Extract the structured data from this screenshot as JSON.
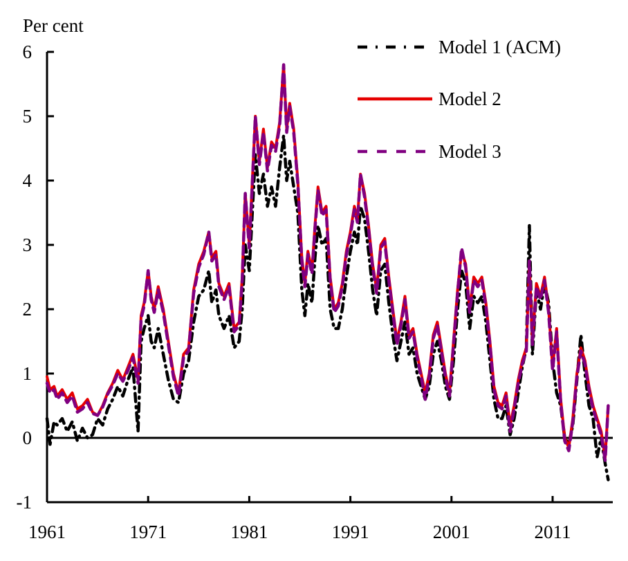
{
  "chart_data": {
    "type": "line",
    "title": "",
    "xlabel": "",
    "ylabel": "Per cent",
    "xlim": [
      1961,
      2016.7
    ],
    "ylim": [
      -1,
      6
    ],
    "x_ticks": [
      1961,
      1971,
      1981,
      1991,
      2001,
      2011
    ],
    "x_tick_labels": [
      "1961",
      "1971",
      "1981",
      "1991",
      "2001",
      "2011"
    ],
    "y_ticks": [
      -1,
      0,
      1,
      2,
      3,
      4,
      5,
      6
    ],
    "y_tick_labels": [
      "-1",
      "0",
      "1",
      "2",
      "3",
      "4",
      "5",
      "6"
    ],
    "grid": false,
    "zero_line": true,
    "legend_position": "top-right",
    "series": [
      {
        "name": "Model 1 (ACM)",
        "color": "#000000",
        "style": "dash-dot",
        "x": [
          1961.0,
          1961.3,
          1961.7,
          1962.0,
          1962.5,
          1963.0,
          1963.5,
          1964.0,
          1964.5,
          1965.0,
          1965.5,
          1966.0,
          1966.5,
          1967.0,
          1967.5,
          1968.0,
          1968.5,
          1969.0,
          1969.5,
          1970.0,
          1970.3,
          1970.6,
          1971.0,
          1971.3,
          1971.6,
          1972.0,
          1972.5,
          1973.0,
          1973.5,
          1974.0,
          1974.5,
          1975.0,
          1975.5,
          1976.0,
          1976.5,
          1977.0,
          1977.3,
          1977.7,
          1978.0,
          1978.5,
          1979.0,
          1979.5,
          1980.0,
          1980.3,
          1980.6,
          1981.0,
          1981.3,
          1981.6,
          1982.0,
          1982.4,
          1982.8,
          1983.2,
          1983.6,
          1984.0,
          1984.4,
          1984.7,
          1985.0,
          1985.4,
          1985.8,
          1986.2,
          1986.5,
          1986.8,
          1987.2,
          1987.5,
          1987.8,
          1988.2,
          1988.6,
          1989.0,
          1989.4,
          1989.8,
          1990.2,
          1990.6,
          1991.0,
          1991.4,
          1991.7,
          1992.0,
          1992.4,
          1992.8,
          1993.2,
          1993.6,
          1994.0,
          1994.4,
          1994.8,
          1995.2,
          1995.6,
          1996.0,
          1996.4,
          1996.8,
          1997.2,
          1997.6,
          1998.0,
          1998.4,
          1998.8,
          1999.2,
          1999.6,
          2000.0,
          2000.4,
          2000.8,
          2001.2,
          2001.6,
          2002.0,
          2002.4,
          2002.8,
          2003.2,
          2003.6,
          2004.0,
          2004.4,
          2004.8,
          2005.2,
          2005.6,
          2006.0,
          2006.4,
          2006.8,
          2007.2,
          2007.6,
          2008.0,
          2008.4,
          2008.7,
          2009.0,
          2009.4,
          2009.8,
          2010.2,
          2010.6,
          2011.0,
          2011.4,
          2011.8,
          2012.2,
          2012.6,
          2013.0,
          2013.4,
          2013.8,
          2014.2,
          2014.6,
          2015.0,
          2015.4,
          2015.8,
          2016.2,
          2016.5
        ],
        "values": [
          0.3,
          -0.1,
          0.25,
          0.2,
          0.3,
          0.1,
          0.25,
          -0.05,
          0.15,
          0.0,
          0.05,
          0.3,
          0.2,
          0.45,
          0.6,
          0.8,
          0.65,
          0.9,
          1.1,
          0.1,
          1.5,
          1.7,
          1.9,
          1.5,
          1.4,
          1.7,
          1.3,
          0.9,
          0.6,
          0.55,
          1.0,
          1.2,
          1.8,
          2.2,
          2.3,
          2.6,
          2.1,
          2.3,
          1.9,
          1.7,
          1.9,
          1.4,
          1.5,
          2.0,
          3.0,
          2.6,
          3.5,
          4.4,
          3.8,
          4.1,
          3.6,
          3.9,
          3.6,
          4.2,
          4.7,
          4.0,
          4.3,
          3.9,
          3.5,
          2.3,
          1.9,
          2.4,
          2.1,
          2.8,
          3.3,
          3.0,
          3.1,
          2.0,
          1.7,
          1.7,
          2.0,
          2.5,
          2.9,
          3.2,
          3.0,
          3.6,
          3.4,
          2.9,
          2.3,
          1.9,
          2.6,
          2.7,
          2.1,
          1.6,
          1.2,
          1.5,
          1.8,
          1.3,
          1.4,
          1.0,
          0.8,
          0.6,
          0.8,
          1.3,
          1.5,
          1.2,
          0.8,
          0.6,
          1.2,
          2.0,
          2.6,
          2.4,
          1.7,
          2.2,
          2.1,
          2.2,
          1.8,
          1.2,
          0.6,
          0.3,
          0.3,
          0.5,
          0.05,
          0.3,
          0.7,
          1.1,
          1.4,
          3.3,
          1.3,
          2.3,
          2.0,
          2.4,
          2.1,
          1.2,
          0.7,
          0.5,
          0.0,
          -0.1,
          0.2,
          0.9,
          1.6,
          1.0,
          0.5,
          0.3,
          -0.3,
          0.0,
          -0.4,
          -0.65
        ]
      },
      {
        "name": "Model 2",
        "color": "#e60000",
        "style": "solid",
        "x": [
          1961.0,
          1961.3,
          1961.7,
          1962.0,
          1962.5,
          1963.0,
          1963.5,
          1964.0,
          1964.5,
          1965.0,
          1965.5,
          1966.0,
          1966.5,
          1967.0,
          1967.5,
          1968.0,
          1968.5,
          1969.0,
          1969.5,
          1970.0,
          1970.3,
          1970.6,
          1971.0,
          1971.3,
          1971.6,
          1972.0,
          1972.5,
          1973.0,
          1973.5,
          1974.0,
          1974.5,
          1975.0,
          1975.5,
          1976.0,
          1976.5,
          1977.0,
          1977.3,
          1977.7,
          1978.0,
          1978.5,
          1979.0,
          1979.5,
          1980.0,
          1980.3,
          1980.6,
          1981.0,
          1981.3,
          1981.6,
          1982.0,
          1982.4,
          1982.8,
          1983.2,
          1983.6,
          1984.0,
          1984.4,
          1984.7,
          1985.0,
          1985.4,
          1985.8,
          1986.2,
          1986.5,
          1986.8,
          1987.2,
          1987.5,
          1987.8,
          1988.2,
          1988.6,
          1989.0,
          1989.4,
          1989.8,
          1990.2,
          1990.6,
          1991.0,
          1991.4,
          1991.7,
          1992.0,
          1992.4,
          1992.8,
          1993.2,
          1993.6,
          1994.0,
          1994.4,
          1994.8,
          1995.2,
          1995.6,
          1996.0,
          1996.4,
          1996.8,
          1997.2,
          1997.6,
          1998.0,
          1998.4,
          1998.8,
          1999.2,
          1999.6,
          2000.0,
          2000.4,
          2000.8,
          2001.2,
          2001.6,
          2002.0,
          2002.4,
          2002.8,
          2003.2,
          2003.6,
          2004.0,
          2004.4,
          2004.8,
          2005.2,
          2005.6,
          2006.0,
          2006.4,
          2006.8,
          2007.2,
          2007.6,
          2008.0,
          2008.4,
          2008.7,
          2009.0,
          2009.4,
          2009.8,
          2010.2,
          2010.6,
          2011.0,
          2011.4,
          2011.8,
          2012.2,
          2012.6,
          2013.0,
          2013.4,
          2013.8,
          2014.2,
          2014.6,
          2015.0,
          2015.4,
          2015.8,
          2016.2,
          2016.5
        ],
        "values": [
          0.95,
          0.75,
          0.8,
          0.65,
          0.75,
          0.6,
          0.7,
          0.45,
          0.5,
          0.6,
          0.4,
          0.35,
          0.5,
          0.7,
          0.85,
          1.05,
          0.9,
          1.1,
          1.3,
          0.9,
          1.9,
          2.1,
          2.6,
          2.2,
          2.0,
          2.35,
          2.0,
          1.5,
          1.0,
          0.7,
          1.3,
          1.4,
          2.3,
          2.7,
          2.9,
          3.2,
          2.8,
          2.9,
          2.4,
          2.2,
          2.4,
          1.7,
          1.8,
          2.5,
          3.8,
          3.0,
          4.0,
          5.0,
          4.3,
          4.8,
          4.2,
          4.6,
          4.5,
          4.9,
          5.8,
          4.8,
          5.2,
          4.8,
          4.0,
          2.8,
          2.4,
          2.9,
          2.6,
          3.3,
          3.9,
          3.5,
          3.6,
          2.5,
          2.0,
          2.1,
          2.4,
          2.9,
          3.2,
          3.6,
          3.4,
          4.1,
          3.8,
          3.3,
          2.7,
          2.3,
          3.0,
          3.1,
          2.5,
          2.0,
          1.5,
          1.8,
          2.2,
          1.6,
          1.7,
          1.3,
          1.0,
          0.7,
          1.0,
          1.6,
          1.8,
          1.4,
          1.0,
          0.7,
          1.5,
          2.3,
          2.9,
          2.7,
          2.0,
          2.5,
          2.4,
          2.5,
          2.1,
          1.5,
          0.8,
          0.55,
          0.5,
          0.7,
          0.2,
          0.5,
          0.9,
          1.2,
          1.4,
          2.7,
          1.5,
          2.4,
          2.2,
          2.5,
          2.0,
          1.1,
          1.7,
          0.6,
          0.0,
          -0.15,
          0.3,
          1.0,
          1.4,
          1.2,
          0.8,
          0.5,
          0.3,
          0.1,
          -0.3,
          0.5
        ]
      },
      {
        "name": "Model 3",
        "color": "#800080",
        "style": "dashed",
        "x": [
          1961.0,
          1961.3,
          1961.7,
          1962.0,
          1962.5,
          1963.0,
          1963.5,
          1964.0,
          1964.5,
          1965.0,
          1965.5,
          1966.0,
          1966.5,
          1967.0,
          1967.5,
          1968.0,
          1968.5,
          1969.0,
          1969.5,
          1970.0,
          1970.3,
          1970.6,
          1971.0,
          1971.3,
          1971.6,
          1972.0,
          1972.5,
          1973.0,
          1973.5,
          1974.0,
          1974.5,
          1975.0,
          1975.5,
          1976.0,
          1976.5,
          1977.0,
          1977.3,
          1977.7,
          1978.0,
          1978.5,
          1979.0,
          1979.5,
          1980.0,
          1980.3,
          1980.6,
          1981.0,
          1981.3,
          1981.6,
          1982.0,
          1982.4,
          1982.8,
          1983.2,
          1983.6,
          1984.0,
          1984.4,
          1984.7,
          1985.0,
          1985.4,
          1985.8,
          1986.2,
          1986.5,
          1986.8,
          1987.2,
          1987.5,
          1987.8,
          1988.2,
          1988.6,
          1989.0,
          1989.4,
          1989.8,
          1990.2,
          1990.6,
          1991.0,
          1991.4,
          1991.7,
          1992.0,
          1992.4,
          1992.8,
          1993.2,
          1993.6,
          1994.0,
          1994.4,
          1994.8,
          1995.2,
          1995.6,
          1996.0,
          1996.4,
          1996.8,
          1997.2,
          1997.6,
          1998.0,
          1998.4,
          1998.8,
          1999.2,
          1999.6,
          2000.0,
          2000.4,
          2000.8,
          2001.2,
          2001.6,
          2002.0,
          2002.4,
          2002.8,
          2003.2,
          2003.6,
          2004.0,
          2004.4,
          2004.8,
          2005.2,
          2005.6,
          2006.0,
          2006.4,
          2006.8,
          2007.2,
          2007.6,
          2008.0,
          2008.4,
          2008.7,
          2009.0,
          2009.4,
          2009.8,
          2010.2,
          2010.6,
          2011.0,
          2011.4,
          2011.8,
          2012.2,
          2012.6,
          2013.0,
          2013.4,
          2013.8,
          2014.2,
          2014.6,
          2015.0,
          2015.4,
          2015.8,
          2016.2,
          2016.5
        ],
        "values": [
          0.85,
          0.7,
          0.75,
          0.6,
          0.7,
          0.55,
          0.65,
          0.4,
          0.45,
          0.55,
          0.38,
          0.35,
          0.48,
          0.68,
          0.82,
          1.0,
          0.88,
          1.05,
          1.25,
          0.85,
          1.85,
          2.05,
          2.6,
          2.15,
          1.95,
          2.3,
          1.95,
          1.45,
          0.95,
          0.65,
          1.25,
          1.35,
          2.25,
          2.65,
          2.85,
          3.2,
          2.75,
          2.85,
          2.35,
          2.15,
          2.35,
          1.65,
          1.75,
          2.45,
          3.8,
          2.95,
          3.95,
          5.0,
          4.25,
          4.75,
          4.15,
          4.55,
          4.45,
          4.85,
          5.8,
          4.75,
          5.15,
          4.75,
          3.95,
          2.75,
          2.35,
          2.85,
          2.55,
          3.25,
          3.85,
          3.45,
          3.55,
          2.45,
          1.95,
          2.05,
          2.35,
          2.85,
          3.15,
          3.55,
          3.35,
          4.1,
          3.75,
          3.25,
          2.65,
          2.25,
          2.95,
          3.05,
          2.45,
          1.95,
          1.45,
          1.75,
          2.15,
          1.55,
          1.65,
          1.25,
          0.95,
          0.6,
          0.95,
          1.55,
          1.75,
          1.35,
          0.95,
          0.65,
          1.45,
          2.25,
          2.95,
          2.65,
          1.95,
          2.45,
          2.35,
          2.45,
          2.05,
          1.45,
          0.75,
          0.5,
          0.45,
          0.65,
          0.1,
          0.45,
          0.85,
          1.15,
          1.35,
          2.75,
          1.45,
          2.35,
          2.15,
          2.45,
          1.95,
          1.05,
          1.65,
          0.55,
          -0.05,
          -0.2,
          0.25,
          0.95,
          1.35,
          1.15,
          0.75,
          0.45,
          0.25,
          0.05,
          -0.35,
          0.5
        ]
      }
    ]
  }
}
